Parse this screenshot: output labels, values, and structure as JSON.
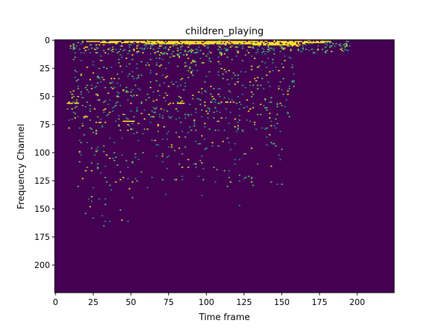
{
  "chart_data": {
    "type": "heatmap",
    "title": "children_playing",
    "xlabel": "Time frame",
    "ylabel": "Frequency Channel",
    "xlim": [
      -0.5,
      224.5
    ],
    "ylim": [
      224.5,
      -0.5
    ],
    "x_ticks": [
      0,
      25,
      50,
      75,
      100,
      125,
      150,
      175,
      200
    ],
    "y_ticks": [
      0,
      25,
      50,
      75,
      100,
      125,
      150,
      175,
      200
    ],
    "colormap": "viridis",
    "value_range": [
      0,
      1
    ],
    "background_value": 0,
    "colors": {
      "low": "#440154",
      "mid": "#21918c",
      "high": "#fde725",
      "mid_light": "#5ec962"
    },
    "grid": false,
    "bands": [
      {
        "y": 1,
        "x_start": 18,
        "x_end": 182,
        "value": 1.0
      },
      {
        "y": 2,
        "x_start": 30,
        "x_end": 178,
        "value": 0.95
      },
      {
        "y": 3,
        "x_start": 60,
        "x_end": 165,
        "value": 0.9
      },
      {
        "y": 4,
        "x_start": 130,
        "x_end": 160,
        "value": 0.9
      },
      {
        "y": 56,
        "x_start": 76,
        "x_end": 86,
        "value": 1.0
      },
      {
        "y": 55,
        "x_start": 110,
        "x_end": 118,
        "value": 0.9
      },
      {
        "y": 56,
        "x_start": 8,
        "x_end": 15,
        "value": 0.9
      },
      {
        "y": 72,
        "x_start": 45,
        "x_end": 52,
        "value": 0.9
      },
      {
        "y": 73,
        "x_start": 27,
        "x_end": 33,
        "value": 0.85
      },
      {
        "y": 68,
        "x_start": 18,
        "x_end": 22,
        "value": 0.8
      }
    ],
    "scatter_regions": [
      {
        "x_range": [
          10,
          195
        ],
        "y_range": [
          0,
          12
        ],
        "count": 360
      },
      {
        "x_range": [
          10,
          158
        ],
        "y_range": [
          12,
          45
        ],
        "count": 260
      },
      {
        "x_range": [
          8,
          155
        ],
        "y_range": [
          45,
          80
        ],
        "count": 300
      },
      {
        "x_range": [
          15,
          150
        ],
        "y_range": [
          80,
          130
        ],
        "count": 170
      },
      {
        "x_range": [
          20,
          60
        ],
        "y_range": [
          130,
          165
        ],
        "count": 14
      }
    ],
    "isolated_points": [
      {
        "x": 33,
        "y": 161
      },
      {
        "x": 48,
        "y": 161
      },
      {
        "x": 122,
        "y": 147
      },
      {
        "x": 97,
        "y": 138
      },
      {
        "x": 147,
        "y": 128
      },
      {
        "x": 22,
        "y": 141
      },
      {
        "x": 24,
        "y": 143
      },
      {
        "x": 29,
        "y": 141
      },
      {
        "x": 31,
        "y": 156
      },
      {
        "x": 61,
        "y": 131
      },
      {
        "x": 73,
        "y": 137
      }
    ]
  }
}
